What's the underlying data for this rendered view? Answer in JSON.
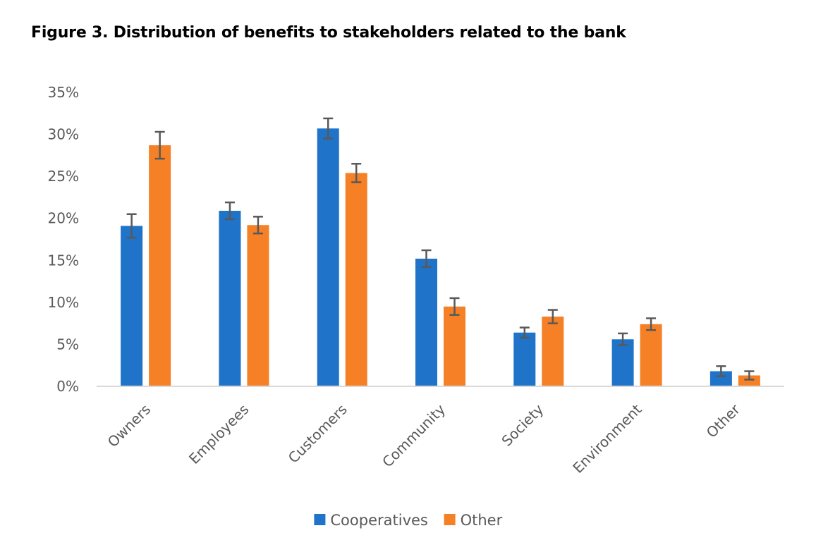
{
  "title": "Figure 3. Distribution of benefits to stakeholders related to the bank",
  "chart_data": {
    "type": "bar",
    "title": "Figure 3. Distribution of benefits to stakeholders related to the bank",
    "xlabel": "",
    "ylabel": "",
    "ylim": [
      0,
      35
    ],
    "y_ticks": [
      "0%",
      "5%",
      "10%",
      "15%",
      "20%",
      "25%",
      "30%",
      "35%"
    ],
    "y_tick_values": [
      0,
      5,
      10,
      15,
      20,
      25,
      30,
      35
    ],
    "categories": [
      "Owners",
      "Employees",
      "Customers",
      "Community",
      "Society",
      "Environment",
      "Other"
    ],
    "series": [
      {
        "name": "Cooperatives",
        "color": "#1F73C8",
        "values": [
          19.1,
          20.9,
          30.7,
          15.2,
          6.4,
          5.6,
          1.8
        ],
        "error": [
          1.4,
          1.0,
          1.2,
          1.0,
          0.6,
          0.7,
          0.6
        ]
      },
      {
        "name": "Other",
        "color": "#F58025",
        "values": [
          28.7,
          19.2,
          25.4,
          9.5,
          8.3,
          7.4,
          1.3
        ],
        "error": [
          1.6,
          1.0,
          1.1,
          1.0,
          0.8,
          0.7,
          0.5
        ]
      }
    ],
    "error_bar_color": "#595959",
    "grid": false,
    "legend_position": "bottom"
  }
}
